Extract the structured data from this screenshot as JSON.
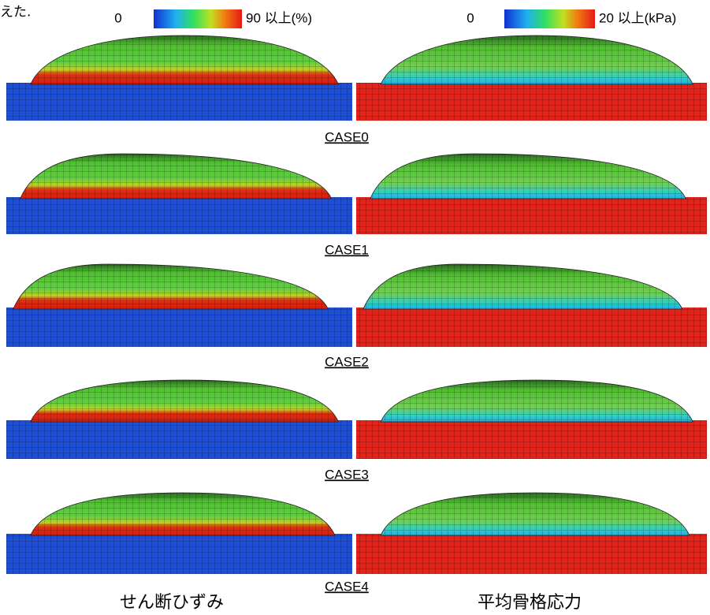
{
  "header": {
    "caption_fragment": "えた.",
    "colorbars": [
      {
        "min": "0",
        "max": "90 以上(%)"
      },
      {
        "min": "0",
        "max": "20 以上(kPa)"
      }
    ]
  },
  "cases": [
    "CASE0",
    "CASE1",
    "CASE2",
    "CASE3",
    "CASE4"
  ],
  "columns": [
    "せん断ひずみ",
    "平均骨格応力"
  ]
}
